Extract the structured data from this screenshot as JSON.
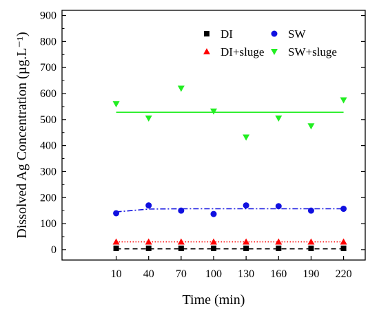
{
  "chart_data": {
    "type": "scatter",
    "xlabel": "Time (min)",
    "ylabel": "Dissolved Ag Concentration (µg.L⁻¹)",
    "x_ticks": [
      10,
      40,
      70,
      100,
      130,
      160,
      190,
      220
    ],
    "y_ticks": [
      0,
      100,
      200,
      300,
      400,
      500,
      600,
      700,
      800,
      900
    ],
    "xlim": [
      -40,
      240
    ],
    "ylim": [
      -40,
      920
    ],
    "legend_placement": "top-right",
    "grid": false,
    "series": [
      {
        "name": "DI",
        "marker": "square",
        "color": "#000000",
        "x": [
          10,
          40,
          70,
          100,
          130,
          160,
          190,
          220
        ],
        "y": [
          5,
          5,
          5,
          5,
          5,
          5,
          5,
          5
        ],
        "fit": {
          "style": "dashed",
          "color": "#000000",
          "y": [
            3,
            3,
            3,
            3,
            3,
            3,
            3,
            3
          ]
        }
      },
      {
        "name": "SW",
        "marker": "circle",
        "color": "#1010e0",
        "x": [
          10,
          40,
          70,
          100,
          130,
          160,
          190,
          220
        ],
        "y": [
          140,
          170,
          150,
          137,
          170,
          167,
          150,
          157
        ],
        "fit": {
          "style": "dashdot",
          "color": "#1010e0",
          "y": [
            145,
            156,
            157,
            157,
            157,
            157,
            157,
            157
          ]
        }
      },
      {
        "name": "DI+sluge",
        "marker": "triangle-up",
        "color": "#ff0000",
        "x": [
          10,
          40,
          70,
          100,
          130,
          160,
          190,
          220
        ],
        "y": [
          30,
          30,
          30,
          30,
          30,
          30,
          30,
          30
        ],
        "fit": {
          "style": "dotted",
          "color": "#ff0000",
          "y": [
            30,
            30,
            30,
            30,
            30,
            30,
            30,
            30
          ]
        }
      },
      {
        "name": "SW+sluge",
        "marker": "triangle-down",
        "color": "#22ee22",
        "x": [
          10,
          40,
          70,
          100,
          130,
          160,
          190,
          220
        ],
        "y": [
          560,
          505,
          620,
          532,
          432,
          505,
          475,
          575
        ],
        "fit": {
          "style": "solid",
          "color": "#22ee22",
          "y": [
            528,
            528,
            528,
            528,
            528,
            528,
            528,
            528
          ]
        }
      }
    ]
  }
}
